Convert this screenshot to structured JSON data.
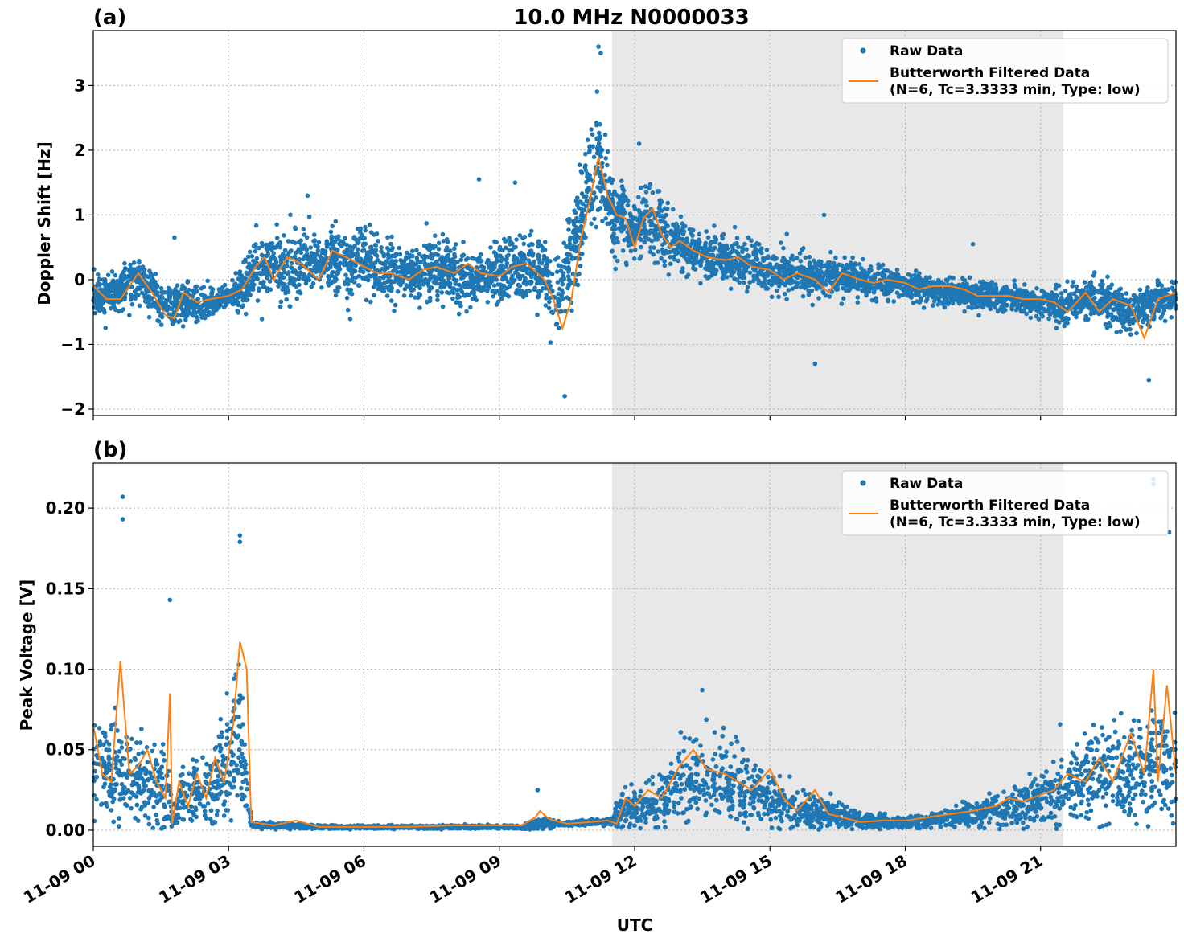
{
  "figure": {
    "title": "10.0 MHz N0000033",
    "x_label": "UTC",
    "x_ticks": [
      "11-09 00",
      "11-09 03",
      "11-09 06",
      "11-09 09",
      "11-09 12",
      "11-09 15",
      "11-09 18",
      "11-09 21"
    ],
    "shaded_span_utc": [
      "11-09 11:30",
      "11-09 21:30"
    ],
    "colors": {
      "raw": "#1f77b4",
      "filtered": "#ff7f0e",
      "shade": "#e8e8e8",
      "grid": "#b0b0b0"
    }
  },
  "legend": {
    "raw_label": "Raw Data",
    "filtered_label_line1": "Butterworth Filtered Data",
    "filtered_label_line2": "(N=6, Tc=3.3333 min, Type: low)"
  },
  "chart_data": [
    {
      "type": "scatter",
      "panel_label": "(a)",
      "ylabel": "Doppler Shift [Hz]",
      "xlim": [
        "11-09 00:00",
        "11-10 00:00"
      ],
      "ylim": [
        -2.1,
        3.85
      ],
      "yticks": [
        -2,
        -1,
        0,
        1,
        2,
        3
      ],
      "ytick_labels": [
        "−2",
        "−1",
        "0",
        "1",
        "2",
        "3"
      ],
      "grid": true,
      "legend_position": "top-right",
      "series": [
        {
          "name": "Raw Data",
          "kind": "scatter",
          "x_hours": [
            0,
            0.5,
            1,
            1.5,
            2,
            2.5,
            3,
            3.3,
            3.5,
            4,
            4.5,
            5,
            5.5,
            6,
            6.5,
            7,
            7.5,
            8,
            8.5,
            9,
            9.5,
            10,
            10.3,
            10.5,
            10.8,
            11,
            11.2,
            11.5,
            12,
            12.5,
            13,
            13.5,
            14,
            14.5,
            15,
            15.5,
            16,
            16.5,
            17,
            17.5,
            18,
            18.5,
            19,
            19.5,
            20,
            20.5,
            21,
            21.5,
            22,
            22.5,
            23,
            23.5,
            24
          ],
          "center": [
            -0.25,
            -0.2,
            0.05,
            -0.4,
            -0.35,
            -0.4,
            -0.25,
            -0.15,
            0.1,
            0.25,
            0.2,
            0.35,
            0.2,
            0.3,
            0.15,
            0.05,
            0.15,
            0.1,
            -0.05,
            0.1,
            0.2,
            0.05,
            -0.4,
            0.1,
            0.9,
            1.5,
            1.9,
            1.0,
            0.8,
            0.9,
            0.5,
            0.35,
            0.3,
            0.25,
            0.1,
            0.15,
            0.05,
            0.05,
            0.0,
            -0.05,
            -0.1,
            -0.15,
            -0.2,
            -0.25,
            -0.25,
            -0.3,
            -0.35,
            -0.4,
            -0.3,
            -0.35,
            -0.5,
            -0.35,
            -0.3
          ],
          "spread": [
            0.3,
            0.3,
            0.3,
            0.35,
            0.3,
            0.25,
            0.15,
            0.4,
            0.5,
            0.5,
            0.5,
            0.5,
            0.5,
            0.5,
            0.45,
            0.45,
            0.45,
            0.45,
            0.4,
            0.45,
            0.45,
            0.5,
            0.6,
            0.7,
            0.8,
            0.9,
            0.8,
            0.6,
            0.45,
            0.5,
            0.4,
            0.35,
            0.3,
            0.3,
            0.3,
            0.3,
            0.3,
            0.25,
            0.25,
            0.25,
            0.2,
            0.2,
            0.2,
            0.2,
            0.2,
            0.2,
            0.2,
            0.25,
            0.3,
            0.3,
            0.35,
            0.3,
            0.25
          ],
          "notable_points": [
            {
              "t": 10.45,
              "y": -1.8
            },
            {
              "t": 11.2,
              "y": 3.6
            },
            {
              "t": 11.25,
              "y": 3.5
            },
            {
              "t": 8.55,
              "y": 1.55
            },
            {
              "t": 9.35,
              "y": 1.5
            },
            {
              "t": 4.75,
              "y": 1.3
            },
            {
              "t": 1.8,
              "y": 0.65
            },
            {
              "t": 12.1,
              "y": 2.1
            },
            {
              "t": 16.2,
              "y": 1.0
            },
            {
              "t": 19.5,
              "y": 0.55
            },
            {
              "t": 16.0,
              "y": -1.3
            },
            {
              "t": 23.4,
              "y": -1.55
            }
          ]
        },
        {
          "name": "Butterworth Filtered Data",
          "kind": "line",
          "x_hours": [
            0,
            0.3,
            0.6,
            1,
            1.3,
            1.6,
            1.8,
            2,
            2.3,
            2.6,
            3,
            3.3,
            3.6,
            3.8,
            4,
            4.3,
            4.6,
            5,
            5.3,
            5.6,
            6,
            6.3,
            6.6,
            7,
            7.3,
            7.6,
            8,
            8.3,
            8.6,
            9,
            9.3,
            9.6,
            10,
            10.2,
            10.4,
            10.6,
            10.8,
            11,
            11.2,
            11.4,
            11.6,
            11.8,
            12,
            12.2,
            12.4,
            12.6,
            12.8,
            13,
            13.3,
            13.6,
            14,
            14.3,
            14.6,
            15,
            15.3,
            15.6,
            16,
            16.3,
            16.6,
            17,
            17.3,
            17.6,
            18,
            18.3,
            18.6,
            19,
            19.3,
            19.6,
            20,
            20.3,
            20.6,
            21,
            21.3,
            21.6,
            22,
            22.3,
            22.6,
            23,
            23.3,
            23.6,
            24
          ],
          "y": [
            -0.1,
            -0.3,
            -0.3,
            0.1,
            -0.2,
            -0.55,
            -0.6,
            -0.2,
            -0.35,
            -0.3,
            -0.25,
            -0.15,
            0.2,
            0.35,
            0.0,
            0.35,
            0.25,
            0.0,
            0.45,
            0.35,
            0.2,
            0.1,
            0.1,
            0.0,
            0.15,
            0.2,
            0.1,
            0.25,
            0.1,
            0.05,
            0.2,
            0.25,
            0.0,
            -0.3,
            -0.75,
            -0.3,
            0.6,
            1.2,
            1.9,
            1.3,
            1.0,
            0.95,
            0.5,
            0.95,
            1.1,
            0.7,
            0.5,
            0.6,
            0.45,
            0.35,
            0.3,
            0.35,
            0.2,
            0.15,
            0.0,
            0.1,
            0.0,
            -0.2,
            0.1,
            0.0,
            -0.05,
            0.0,
            -0.05,
            -0.15,
            -0.1,
            -0.1,
            -0.15,
            -0.25,
            -0.25,
            -0.25,
            -0.3,
            -0.3,
            -0.35,
            -0.5,
            -0.2,
            -0.5,
            -0.3,
            -0.4,
            -0.9,
            -0.3,
            -0.2
          ]
        }
      ]
    },
    {
      "type": "scatter",
      "panel_label": "(b)",
      "ylabel": "Peak Voltage [V]",
      "xlim": [
        "11-09 00:00",
        "11-10 00:00"
      ],
      "ylim": [
        -0.01,
        0.228
      ],
      "yticks": [
        0.0,
        0.05,
        0.1,
        0.15,
        0.2
      ],
      "ytick_labels": [
        "0.00",
        "0.05",
        "0.10",
        "0.15",
        "0.20"
      ],
      "grid": true,
      "legend_position": "top-right",
      "series": [
        {
          "name": "Raw Data",
          "kind": "scatter",
          "x_hours": [
            0,
            0.5,
            1,
            1.5,
            1.7,
            1.75,
            2,
            2.5,
            3,
            3.2,
            3.35,
            3.5,
            4,
            5,
            6,
            7,
            8,
            9,
            9.5,
            9.8,
            10,
            10.5,
            11,
            11.5,
            11.6,
            12,
            12.5,
            13,
            13.5,
            14,
            14.5,
            15,
            15.5,
            16,
            16.5,
            17,
            17.5,
            18,
            18.5,
            19,
            19.5,
            20,
            20.5,
            21,
            21.5,
            22,
            22.5,
            23,
            23.5,
            24
          ],
          "center": [
            0.04,
            0.035,
            0.03,
            0.025,
            0.02,
            0.005,
            0.02,
            0.025,
            0.04,
            0.06,
            0.04,
            0.003,
            0.003,
            0.002,
            0.002,
            0.002,
            0.002,
            0.002,
            0.002,
            0.003,
            0.004,
            0.004,
            0.005,
            0.005,
            0.01,
            0.015,
            0.015,
            0.03,
            0.035,
            0.03,
            0.025,
            0.02,
            0.015,
            0.012,
            0.01,
            0.006,
            0.005,
            0.005,
            0.006,
            0.008,
            0.01,
            0.012,
            0.015,
            0.02,
            0.025,
            0.03,
            0.035,
            0.035,
            0.04,
            0.04
          ],
          "spread": [
            0.03,
            0.03,
            0.025,
            0.025,
            0.02,
            0.005,
            0.02,
            0.02,
            0.035,
            0.04,
            0.035,
            0.001,
            0.002,
            0.001,
            0.001,
            0.001,
            0.001,
            0.001,
            0.001,
            0.003,
            0.003,
            0.001,
            0.002,
            0.002,
            0.01,
            0.012,
            0.015,
            0.025,
            0.03,
            0.025,
            0.02,
            0.015,
            0.012,
            0.01,
            0.008,
            0.005,
            0.004,
            0.004,
            0.004,
            0.006,
            0.008,
            0.01,
            0.012,
            0.015,
            0.02,
            0.025,
            0.03,
            0.03,
            0.03,
            0.035
          ],
          "notable_points": [
            {
              "t": 0.65,
              "y": 0.207
            },
            {
              "t": 0.65,
              "y": 0.193
            },
            {
              "t": 3.25,
              "y": 0.183
            },
            {
              "t": 3.25,
              "y": 0.179
            },
            {
              "t": 1.7,
              "y": 0.143
            },
            {
              "t": 23.5,
              "y": 0.218
            },
            {
              "t": 23.5,
              "y": 0.215
            },
            {
              "t": 23.85,
              "y": 0.185
            },
            {
              "t": 13.5,
              "y": 0.087
            },
            {
              "t": 9.85,
              "y": 0.025
            }
          ]
        },
        {
          "name": "Butterworth Filtered Data",
          "kind": "line",
          "x_hours": [
            0,
            0.2,
            0.4,
            0.6,
            0.8,
            1,
            1.2,
            1.4,
            1.6,
            1.7,
            1.75,
            1.9,
            2.1,
            2.3,
            2.5,
            2.7,
            2.9,
            3.1,
            3.25,
            3.4,
            3.5,
            4,
            4.5,
            5,
            6,
            7,
            8,
            9,
            9.5,
            9.8,
            9.9,
            10.1,
            10.5,
            11,
            11.4,
            11.6,
            11.8,
            12,
            12.3,
            12.6,
            13,
            13.3,
            13.6,
            14,
            14.3,
            14.6,
            15,
            15.3,
            15.6,
            16,
            16.3,
            16.6,
            17,
            17.5,
            18,
            18.5,
            19,
            19.5,
            20,
            20.3,
            20.6,
            21,
            21.3,
            21.6,
            22,
            22.3,
            22.6,
            23,
            23.3,
            23.5,
            23.6,
            23.8,
            24
          ],
          "y": [
            0.065,
            0.035,
            0.03,
            0.105,
            0.035,
            0.04,
            0.05,
            0.03,
            0.02,
            0.085,
            0.004,
            0.03,
            0.015,
            0.035,
            0.02,
            0.045,
            0.03,
            0.065,
            0.117,
            0.1,
            0.005,
            0.003,
            0.006,
            0.002,
            0.002,
            0.002,
            0.003,
            0.003,
            0.003,
            0.008,
            0.012,
            0.007,
            0.004,
            0.005,
            0.006,
            0.004,
            0.02,
            0.015,
            0.025,
            0.02,
            0.04,
            0.05,
            0.038,
            0.035,
            0.03,
            0.025,
            0.038,
            0.02,
            0.012,
            0.025,
            0.01,
            0.008,
            0.005,
            0.006,
            0.006,
            0.008,
            0.01,
            0.012,
            0.015,
            0.02,
            0.018,
            0.022,
            0.025,
            0.035,
            0.03,
            0.045,
            0.03,
            0.06,
            0.035,
            0.1,
            0.03,
            0.09,
            0.035
          ]
        }
      ]
    }
  ]
}
